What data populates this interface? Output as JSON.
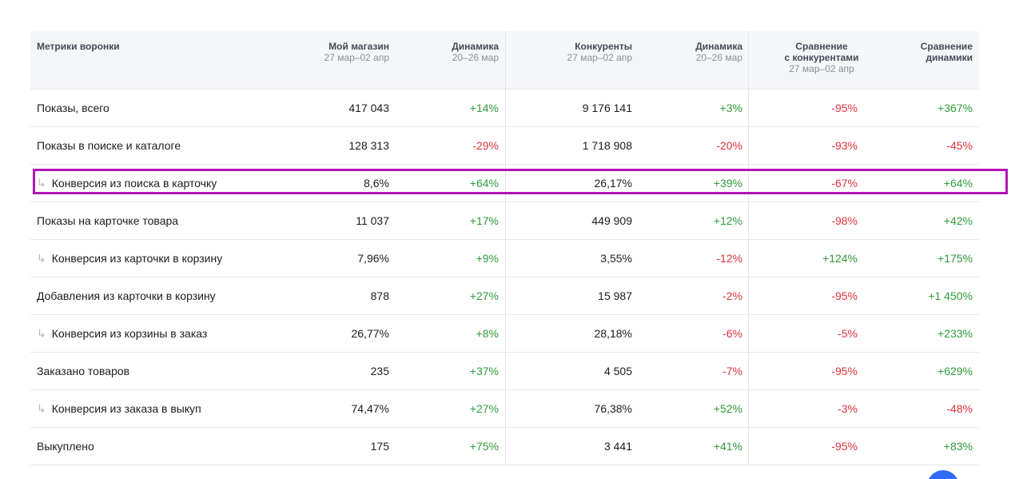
{
  "header": {
    "metric": "Метрики воронки",
    "my_store": {
      "title": "Мой магазин",
      "period": "27 мар–02 апр"
    },
    "my_dynamics": {
      "title": "Динамика",
      "period": "20–26 мар"
    },
    "competitors": {
      "title": "Конкуренты",
      "period": "27 мар–02 апр"
    },
    "comp_dynamics": {
      "title": "Динамика",
      "period": "20–26 мар"
    },
    "comparison": {
      "title": "Сравнение",
      "title2": "с конкурентами",
      "period": "27 мар–02 апр"
    },
    "dyn_comparison": {
      "title": "Сравнение",
      "title2": "динамики"
    }
  },
  "sub_arrow_glyph": "↳",
  "rows": [
    {
      "label": "Показы, всего",
      "sub": false,
      "my": "417 043",
      "my_dyn": "+14%",
      "comp": "9 176 141",
      "comp_dyn": "+3%",
      "cmp": "-95%",
      "dyn_cmp": "+367%"
    },
    {
      "label": "Показы в поиске и каталоге",
      "sub": false,
      "my": "128 313",
      "my_dyn": "-29%",
      "comp": "1 718 908",
      "comp_dyn": "-20%",
      "cmp": "-93%",
      "dyn_cmp": "-45%"
    },
    {
      "label": "Конверсия из поиска в карточку",
      "sub": true,
      "my": "8,6%",
      "my_dyn": "+64%",
      "comp": "26,17%",
      "comp_dyn": "+39%",
      "cmp": "-67%",
      "dyn_cmp": "+64%"
    },
    {
      "label": "Показы на карточке товара",
      "sub": false,
      "my": "11 037",
      "my_dyn": "+17%",
      "comp": "449 909",
      "comp_dyn": "+12%",
      "cmp": "-98%",
      "dyn_cmp": "+42%"
    },
    {
      "label": "Конверсия из карточки в корзину",
      "sub": true,
      "my": "7,96%",
      "my_dyn": "+9%",
      "comp": "3,55%",
      "comp_dyn": "-12%",
      "cmp": "+124%",
      "dyn_cmp": "+175%"
    },
    {
      "label": "Добавления из карточки в корзину",
      "sub": false,
      "my": "878",
      "my_dyn": "+27%",
      "comp": "15 987",
      "comp_dyn": "-2%",
      "cmp": "-95%",
      "dyn_cmp": "+1 450%"
    },
    {
      "label": "Конверсия из корзины в заказ",
      "sub": true,
      "my": "26,77%",
      "my_dyn": "+8%",
      "comp": "28,18%",
      "comp_dyn": "-6%",
      "cmp": "-5%",
      "dyn_cmp": "+233%"
    },
    {
      "label": "Заказано товаров",
      "sub": false,
      "my": "235",
      "my_dyn": "+37%",
      "comp": "4 505",
      "comp_dyn": "-7%",
      "cmp": "-95%",
      "dyn_cmp": "+629%"
    },
    {
      "label": "Конверсия из заказа в выкуп",
      "sub": true,
      "my": "74,47%",
      "my_dyn": "+27%",
      "comp": "76,38%",
      "comp_dyn": "+52%",
      "cmp": "-3%",
      "dyn_cmp": "-48%"
    },
    {
      "label": "Выкуплено",
      "sub": false,
      "my": "175",
      "my_dyn": "+75%",
      "comp": "3 441",
      "comp_dyn": "+41%",
      "cmp": "-95%",
      "dyn_cmp": "+83%"
    }
  ],
  "colors": {
    "positive": "#2f9b3c",
    "negative": "#e0343e",
    "highlight": "#b215b6",
    "fab": "#2f6cf5"
  }
}
